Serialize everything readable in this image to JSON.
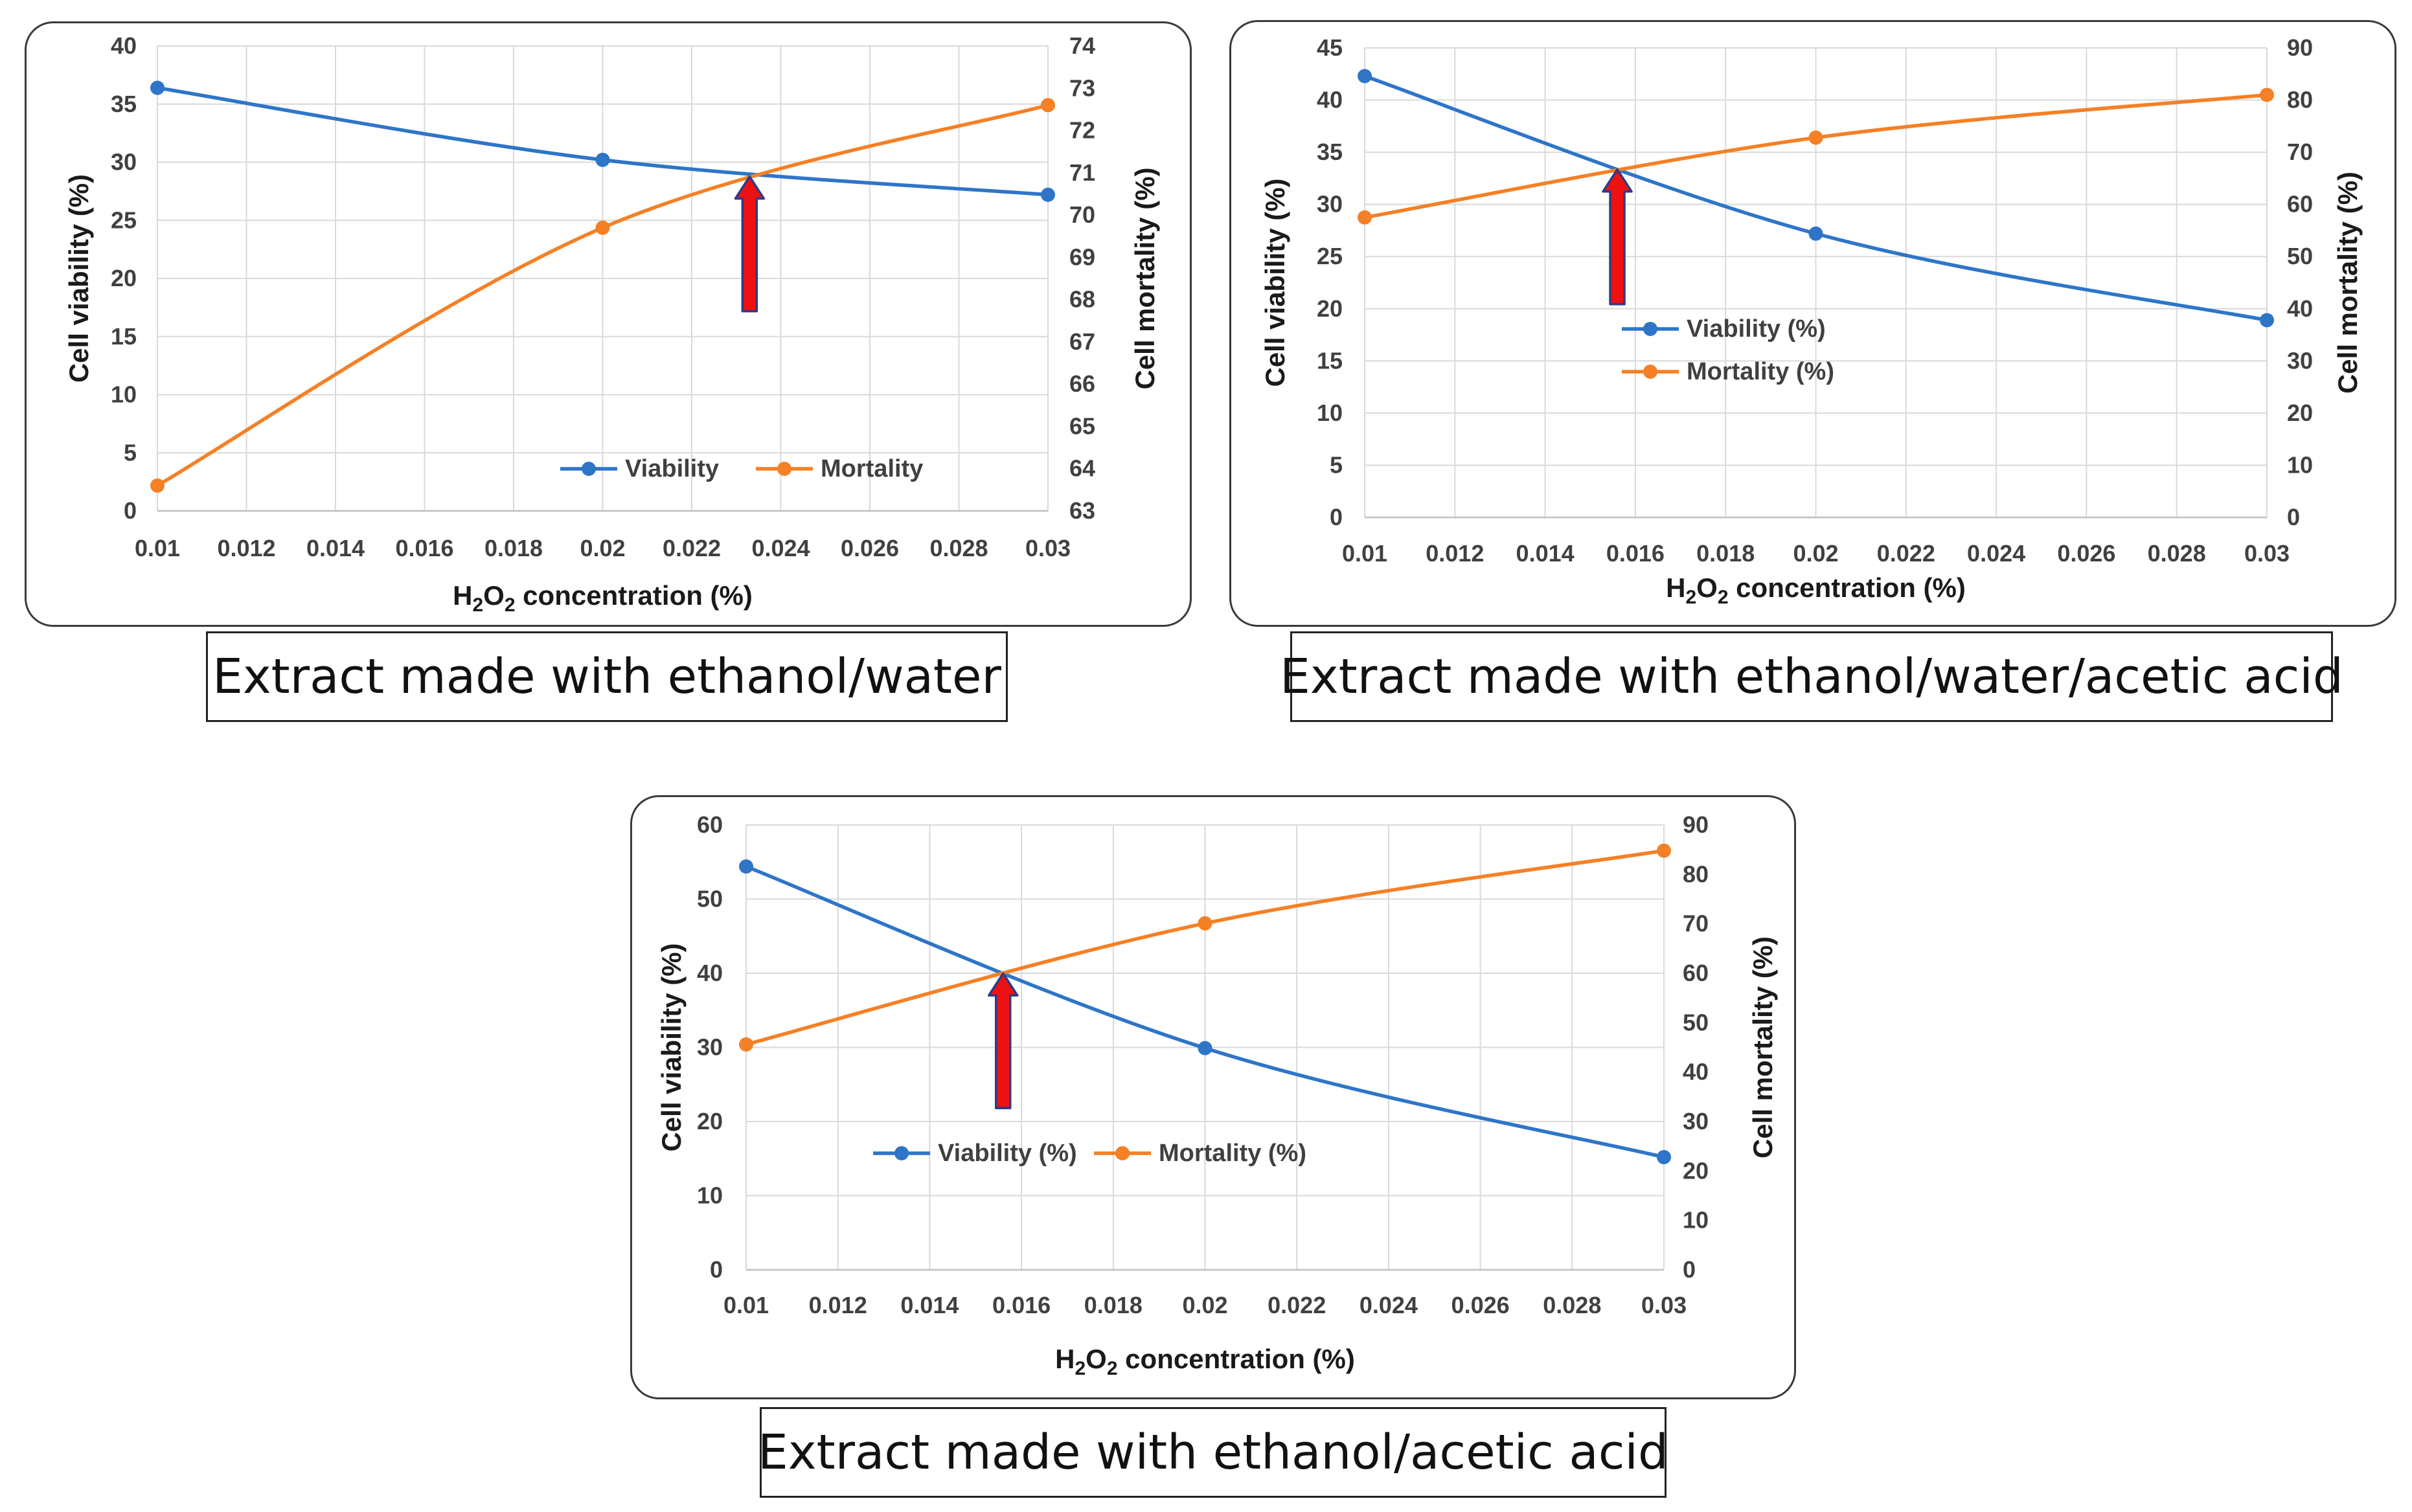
{
  "colors": {
    "viability": "#2e75c8",
    "mortality": "#f58025",
    "arrow_fill": "#ee1111",
    "arrow_stroke": "#2f3a8a",
    "grid": "#d9d9d9"
  },
  "chart_data": [
    {
      "type": "line",
      "caption": "Extract made with ethanol/water",
      "xlabel": {
        "pre": "H",
        "sub1": "2",
        "mid": "O",
        "sub2": "2",
        "post": " concentration (%)"
      },
      "ylabel": "Cell viability (%)",
      "y2label": "Cell mortality (%)",
      "x_ticks": [
        "0.01",
        "0.012",
        "0.014",
        "0.016",
        "0.018",
        "0.02",
        "0.022",
        "0.024",
        "0.026",
        "0.028",
        "0.03"
      ],
      "xlim": [
        0.01,
        0.03
      ],
      "ylim": [
        0,
        40
      ],
      "y_ticks": [
        "0",
        "5",
        "10",
        "15",
        "20",
        "25",
        "30",
        "35",
        "40"
      ],
      "y2lim": [
        63,
        74
      ],
      "y2_ticks": [
        "63",
        "64",
        "65",
        "66",
        "67",
        "68",
        "69",
        "70",
        "71",
        "72",
        "73",
        "74"
      ],
      "series": [
        {
          "name": "Viability",
          "axis": "left",
          "x": [
            0.01,
            0.02,
            0.03
          ],
          "values": [
            36.4,
            30.2,
            27.2
          ]
        },
        {
          "name": "Mortality",
          "axis": "right",
          "x": [
            0.01,
            0.02,
            0.03
          ],
          "values": [
            63.6,
            69.7,
            72.6
          ]
        }
      ],
      "legend": [
        "Viability",
        "Mortality"
      ],
      "legend_position": "bottom-center",
      "arrow_x": 0.0233
    },
    {
      "type": "line",
      "caption": "Extract made with ethanol/water/acetic acid",
      "xlabel": {
        "pre": "H",
        "sub1": "2",
        "mid": "O",
        "sub2": "2",
        "post": " concentration (%)"
      },
      "ylabel": "Cell viability (%)",
      "y2label": "Cell mortality (%)",
      "x_ticks": [
        "0.01",
        "0.012",
        "0.014",
        "0.016",
        "0.018",
        "0.02",
        "0.022",
        "0.024",
        "0.026",
        "0.028",
        "0.03"
      ],
      "xlim": [
        0.01,
        0.03
      ],
      "ylim": [
        0,
        45
      ],
      "y_ticks": [
        "0",
        "5",
        "10",
        "15",
        "20",
        "25",
        "30",
        "35",
        "40",
        "45"
      ],
      "y2lim": [
        0,
        90
      ],
      "y2_ticks": [
        "0",
        "10",
        "20",
        "30",
        "40",
        "50",
        "60",
        "70",
        "80",
        "90"
      ],
      "series": [
        {
          "name": "Viability (%)",
          "axis": "left",
          "x": [
            0.01,
            0.02,
            0.03
          ],
          "values": [
            42.3,
            27.2,
            18.9
          ]
        },
        {
          "name": "Mortality (%)",
          "axis": "right",
          "x": [
            0.01,
            0.02,
            0.03
          ],
          "values": [
            57.5,
            72.8,
            81.0
          ]
        }
      ],
      "legend": [
        "Viability (%)",
        "Mortality (%)"
      ],
      "legend_position": "center-left",
      "arrow_x": 0.0156
    },
    {
      "type": "line",
      "caption": "Extract made with ethanol/acetic acid",
      "xlabel": {
        "pre": "H",
        "sub1": "2",
        "mid": "O",
        "sub2": "2",
        "post": " concentration (%)"
      },
      "ylabel": "Cell viability (%)",
      "y2label": "Cell mortality (%)",
      "x_ticks": [
        "0.01",
        "0.012",
        "0.014",
        "0.016",
        "0.018",
        "0.02",
        "0.022",
        "0.024",
        "0.026",
        "0.028",
        "0.03"
      ],
      "xlim": [
        0.01,
        0.03
      ],
      "ylim": [
        0,
        60
      ],
      "y_ticks": [
        "0",
        "10",
        "20",
        "30",
        "40",
        "50",
        "60"
      ],
      "y2lim": [
        0,
        90
      ],
      "y2_ticks": [
        "0",
        "10",
        "20",
        "30",
        "40",
        "50",
        "60",
        "70",
        "80",
        "90"
      ],
      "series": [
        {
          "name": "Viability (%)",
          "axis": "left",
          "x": [
            0.01,
            0.02,
            0.03
          ],
          "values": [
            54.4,
            29.9,
            15.2
          ]
        },
        {
          "name": "Mortality (%)",
          "axis": "right",
          "x": [
            0.01,
            0.02,
            0.03
          ],
          "values": [
            45.6,
            70.1,
            84.8
          ]
        }
      ],
      "legend": [
        "Viability (%)",
        "Mortality (%)"
      ],
      "legend_position": "bottom-center",
      "arrow_x": 0.0156
    }
  ]
}
